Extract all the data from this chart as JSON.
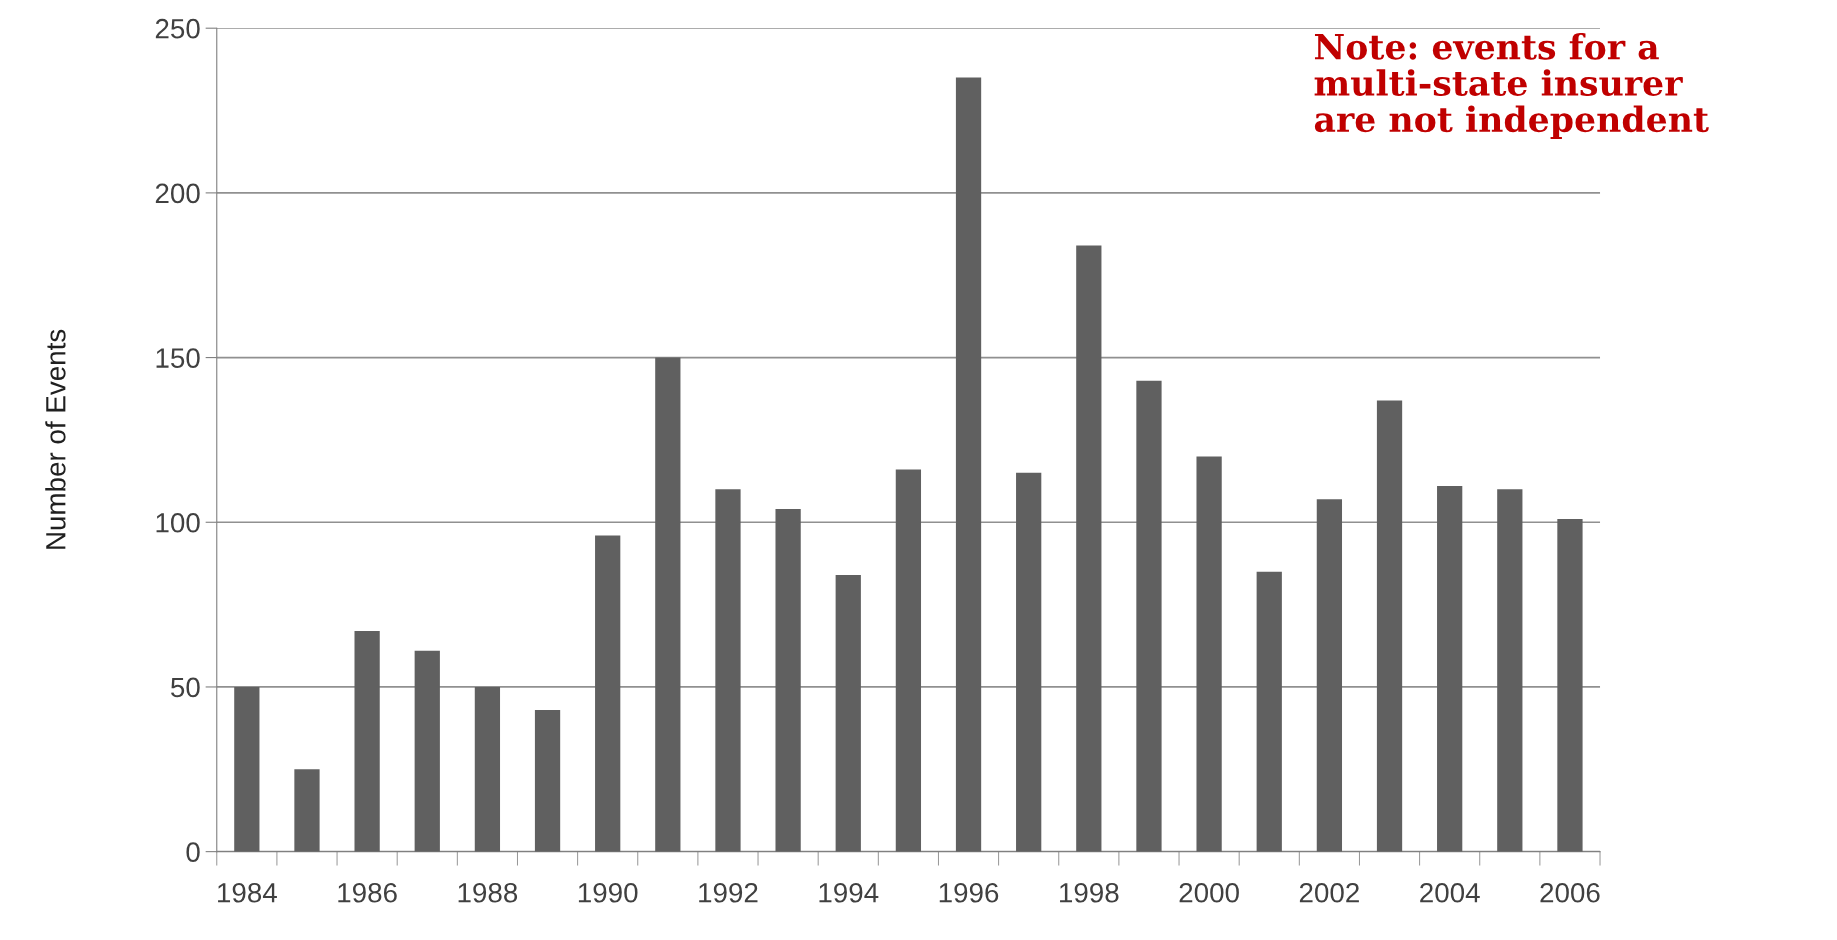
{
  "chart_data": {
    "type": "bar",
    "ylabel": "Number of Events",
    "categories": [
      "1984",
      null,
      "1986",
      null,
      "1988",
      null,
      "1990",
      null,
      "1992",
      null,
      "1994",
      null,
      "1996",
      null,
      "1998",
      null,
      "2000",
      null,
      "2002",
      null,
      "2004",
      null,
      "2006"
    ],
    "values": [
      50,
      25,
      67,
      61,
      50,
      43,
      96,
      150,
      110,
      104,
      84,
      116,
      235,
      115,
      184,
      143,
      120,
      85,
      107,
      137,
      111,
      110,
      101
    ],
    "color": "#606060",
    "ylim": [
      0,
      250
    ],
    "yticks": [
      0,
      50,
      100,
      150,
      200,
      250
    ],
    "grid": "y",
    "annotations": [
      "Note: events for a\nmulti-state insurer\nare not independent"
    ]
  }
}
